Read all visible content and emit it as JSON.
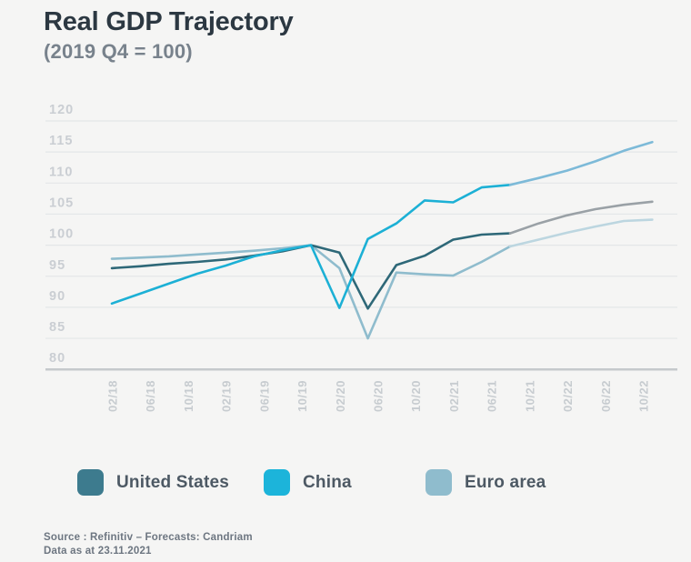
{
  "header": {
    "title": "Real GDP Trajectory",
    "subtitle": "(2019 Q4 = 100)"
  },
  "chart_data": {
    "type": "line",
    "title": "Real GDP Trajectory",
    "subtitle": "(2019 Q4 = 100)",
    "ylim": [
      80,
      120
    ],
    "y_ticks": [
      120,
      115,
      110,
      105,
      100,
      95,
      90,
      85,
      80
    ],
    "x_tick_labels": [
      "02/18",
      "06/18",
      "10/18",
      "02/19",
      "06/19",
      "10/19",
      "02/20",
      "06/20",
      "10/20",
      "02/21",
      "06/21",
      "10/21",
      "02/22",
      "06/22",
      "10/22"
    ],
    "quarters": [
      "2018Q1",
      "2018Q2",
      "2018Q3",
      "2018Q4",
      "2019Q1",
      "2019Q2",
      "2019Q3",
      "2019Q4",
      "2020Q1",
      "2020Q2",
      "2020Q3",
      "2020Q4",
      "2021Q1",
      "2021Q2",
      "2021Q3",
      "2021Q4",
      "2022Q1",
      "2022Q2",
      "2022Q3",
      "2022Q4"
    ],
    "forecast_from_index": 14,
    "grid": true,
    "legend_position": "bottom",
    "series": [
      {
        "name": "Euro area",
        "color_actual": "#8fbccd",
        "color_forecast": "#bcd6e0",
        "values": [
          97.8,
          98.0,
          98.2,
          98.5,
          98.8,
          99.1,
          99.5,
          100.0,
          96.3,
          85.0,
          95.6,
          95.3,
          95.1,
          97.3,
          99.8,
          100.9,
          102.0,
          103.0,
          103.9,
          104.1
        ]
      },
      {
        "name": "United States",
        "color_actual": "#2e6878",
        "color_forecast": "#9aa1a6",
        "values": [
          96.3,
          96.6,
          97.0,
          97.3,
          97.7,
          98.3,
          99.0,
          100.0,
          98.8,
          89.8,
          96.8,
          98.3,
          100.9,
          101.7,
          101.9,
          103.5,
          104.8,
          105.8,
          106.5,
          107.0
        ]
      },
      {
        "name": "China",
        "color_actual": "#1cb0d5",
        "color_forecast": "#7dbad8",
        "values": [
          90.6,
          92.2,
          93.8,
          95.4,
          96.7,
          98.2,
          99.2,
          100.0,
          89.9,
          101.0,
          103.5,
          107.2,
          106.9,
          109.3,
          109.7,
          110.8,
          112.0,
          113.5,
          115.2,
          116.6
        ]
      }
    ],
    "colors": {
      "background": "#f5f5f4",
      "grid_line": "#e4e6e8",
      "axis_line": "#c5c9cc",
      "y_tick_label": "#caced3",
      "x_tick_label": "#c7ccd0"
    }
  },
  "legend": {
    "items": [
      {
        "label": "United States",
        "color": "#3d7b8e"
      },
      {
        "label": "China",
        "color": "#1cb4da"
      },
      {
        "label": "Euro area",
        "color": "#8fbccd"
      }
    ]
  },
  "footer": {
    "line1": "Source : Refinitiv – Forecasts: Candriam",
    "line2": "Data as at 23.11.2021"
  }
}
